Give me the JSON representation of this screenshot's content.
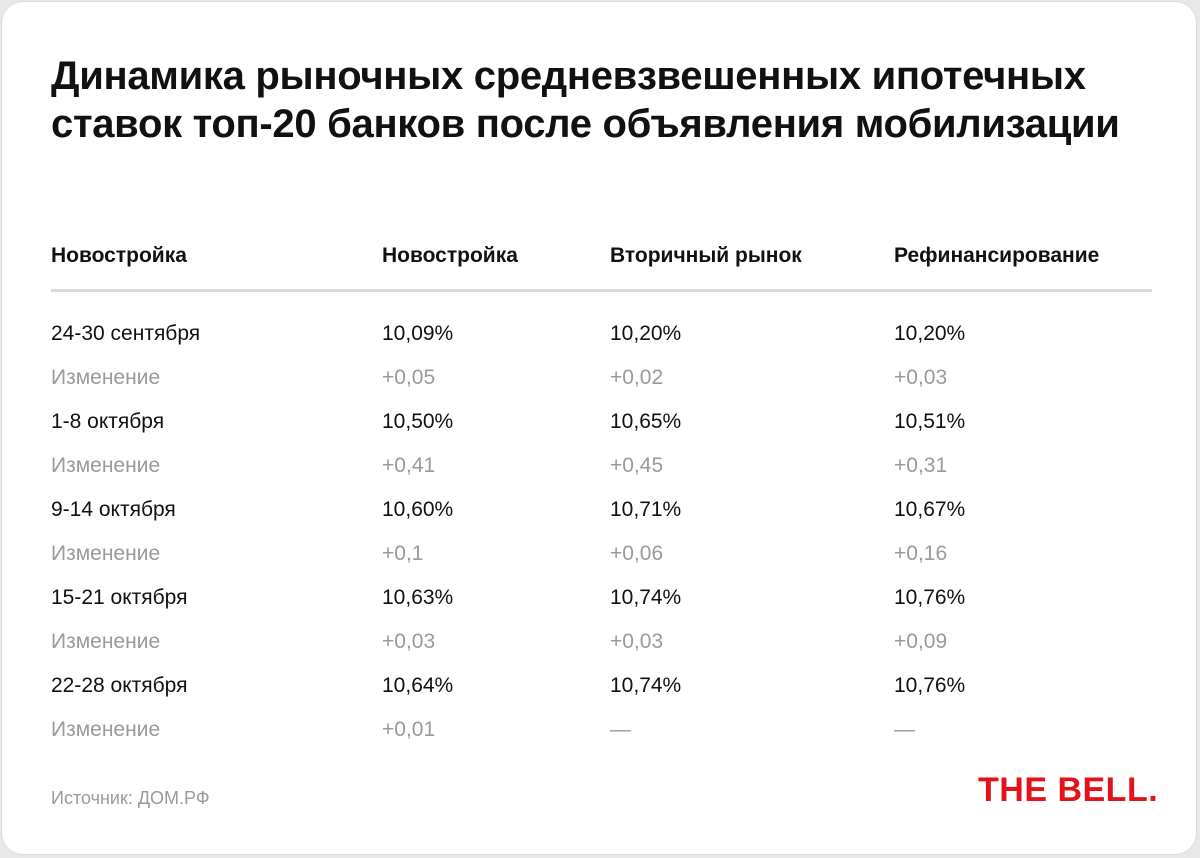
{
  "chart_data": {
    "type": "table",
    "title": "Динамика рыночных средневзвешенных ипотечных ставок топ-20 банков после объявления мобилизации",
    "columns": [
      "Новостройка",
      "Новостройка",
      "Вторичный рынок",
      "Рефинансирование"
    ],
    "rows": [
      {
        "label": "24-30 сентября",
        "values": [
          "10,09%",
          "10,20%",
          "10,20%"
        ]
      },
      {
        "label": "Изменение",
        "values": [
          "+0,05",
          "+0,02",
          "+0,03"
        ]
      },
      {
        "label": "1-8 октября",
        "values": [
          "10,50%",
          "10,65%",
          "10,51%"
        ]
      },
      {
        "label": "Изменение",
        "values": [
          "+0,41",
          "+0,45",
          "+0,31"
        ]
      },
      {
        "label": "9-14 октября",
        "values": [
          "10,60%",
          "10,71%",
          "10,67%"
        ]
      },
      {
        "label": "Изменение",
        "values": [
          "+0,1",
          "+0,06",
          "+0,16"
        ]
      },
      {
        "label": "15-21 октября",
        "values": [
          "10,63%",
          "10,74%",
          "10,76%"
        ]
      },
      {
        "label": "Изменение",
        "values": [
          "+0,03",
          "+0,03",
          "+0,09"
        ]
      },
      {
        "label": "22-28 октября",
        "values": [
          "10,64%",
          "10,74%",
          "10,76%"
        ]
      },
      {
        "label": "Изменение",
        "values": [
          "+0,01",
          "—",
          "—"
        ]
      }
    ]
  },
  "footer": {
    "source": "Источник: ДОМ.РФ",
    "logo": "THE BELL."
  },
  "colors": {
    "text": "#111111",
    "muted": "#9a9a9a",
    "rule": "#dadada",
    "brand": "#e3121b",
    "background": "#ffffff"
  }
}
